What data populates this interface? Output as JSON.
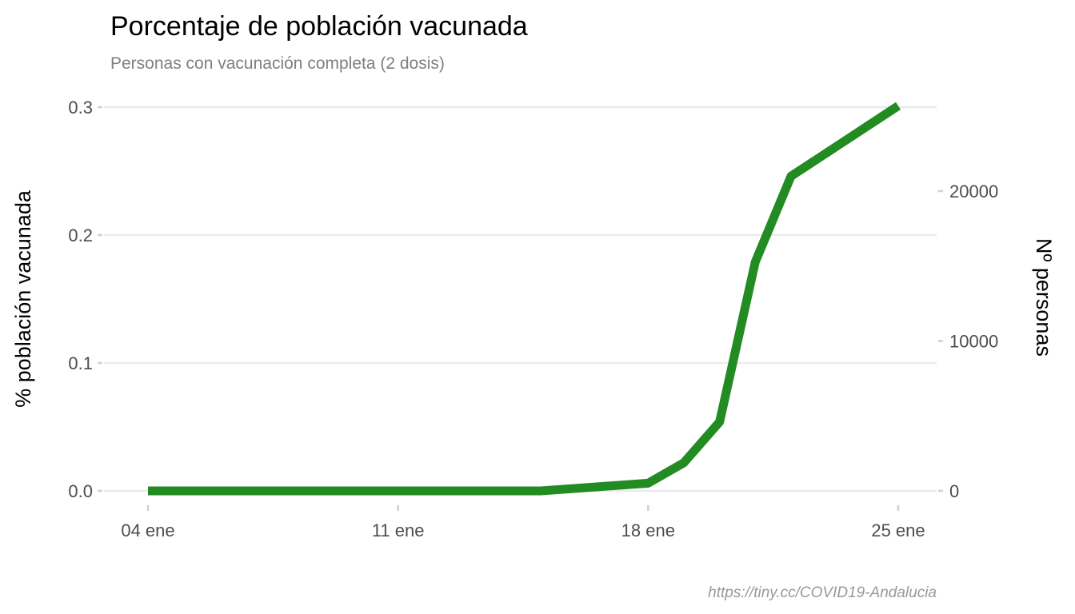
{
  "chart_data": {
    "type": "line",
    "title": "Porcentaje de población vacunada",
    "subtitle": "Personas con vacunación completa (2 dosis)",
    "ylabel": "% población vacunada",
    "y2label": "Nº personas",
    "caption": "https://tiny.cc/COVID19-Andalucia",
    "ylim": [
      0,
      0.3
    ],
    "y2lim": [
      0,
      25500
    ],
    "xlim": [
      "2021-01-04",
      "2021-01-25"
    ],
    "x_ticks": [
      {
        "date": "2021-01-04",
        "label": "04 ene"
      },
      {
        "date": "2021-01-11",
        "label": "11 ene"
      },
      {
        "date": "2021-01-18",
        "label": "18 ene"
      },
      {
        "date": "2021-01-25",
        "label": "25 ene"
      }
    ],
    "y_ticks": [
      {
        "value": 0.0,
        "label": "0.0"
      },
      {
        "value": 0.1,
        "label": "0.1"
      },
      {
        "value": 0.2,
        "label": "0.2"
      },
      {
        "value": 0.3,
        "label": "0.3"
      }
    ],
    "y2_ticks": [
      {
        "value": 0,
        "label": "0"
      },
      {
        "value": 10000,
        "label": "10000"
      },
      {
        "value": 20000,
        "label": "20000"
      }
    ],
    "grid": true,
    "series": [
      {
        "color": "#228b22",
        "points": [
          {
            "x": "2021-01-04",
            "y": 0.0
          },
          {
            "x": "2021-01-05",
            "y": 0.0
          },
          {
            "x": "2021-01-06",
            "y": 0.0
          },
          {
            "x": "2021-01-07",
            "y": 0.0
          },
          {
            "x": "2021-01-08",
            "y": 0.0
          },
          {
            "x": "2021-01-09",
            "y": 0.0
          },
          {
            "x": "2021-01-10",
            "y": 0.0
          },
          {
            "x": "2021-01-11",
            "y": 0.0
          },
          {
            "x": "2021-01-12",
            "y": 0.0
          },
          {
            "x": "2021-01-13",
            "y": 0.0
          },
          {
            "x": "2021-01-14",
            "y": 0.0
          },
          {
            "x": "2021-01-15",
            "y": 0.0
          },
          {
            "x": "2021-01-18",
            "y": 0.006
          },
          {
            "x": "2021-01-19",
            "y": 0.022
          },
          {
            "x": "2021-01-20",
            "y": 0.054
          },
          {
            "x": "2021-01-21",
            "y": 0.179
          },
          {
            "x": "2021-01-22",
            "y": 0.246
          },
          {
            "x": "2021-01-25",
            "y": 0.301
          }
        ]
      }
    ]
  }
}
